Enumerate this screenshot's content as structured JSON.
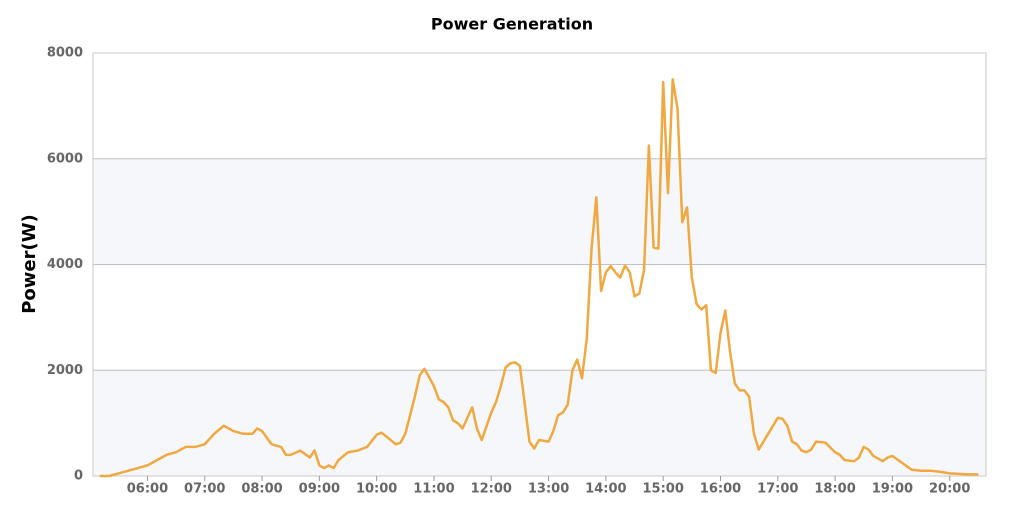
{
  "chart_data": {
    "type": "line",
    "title": "Power Generation",
    "y_label": "Power(W)",
    "x": [
      "05:10",
      "05:20",
      "05:30",
      "05:40",
      "05:50",
      "06:00",
      "06:10",
      "06:20",
      "06:30",
      "06:40",
      "06:50",
      "07:00",
      "07:10",
      "07:20",
      "07:30",
      "07:40",
      "07:50",
      "07:55",
      "08:00",
      "08:10",
      "08:20",
      "08:25",
      "08:30",
      "08:40",
      "08:50",
      "08:55",
      "09:00",
      "09:05",
      "09:10",
      "09:15",
      "09:20",
      "09:30",
      "09:40",
      "09:50",
      "10:00",
      "10:05",
      "10:10",
      "10:20",
      "10:25",
      "10:30",
      "10:40",
      "10:45",
      "10:50",
      "11:00",
      "11:05",
      "11:10",
      "11:15",
      "11:20",
      "11:25",
      "11:30",
      "11:35",
      "11:40",
      "11:45",
      "11:50",
      "12:00",
      "12:05",
      "12:10",
      "12:15",
      "12:20",
      "12:25",
      "12:30",
      "12:40",
      "12:45",
      "12:50",
      "13:00",
      "13:05",
      "13:10",
      "13:15",
      "13:20",
      "13:25",
      "13:30",
      "13:35",
      "13:40",
      "13:45",
      "13:50",
      "13:55",
      "14:00",
      "14:05",
      "14:10",
      "14:15",
      "14:20",
      "14:25",
      "14:30",
      "14:35",
      "14:40",
      "14:45",
      "14:50",
      "14:55",
      "15:00",
      "15:05",
      "15:10",
      "15:15",
      "15:20",
      "15:25",
      "15:30",
      "15:35",
      "15:40",
      "15:45",
      "15:50",
      "15:55",
      "16:00",
      "16:05",
      "16:10",
      "16:15",
      "16:20",
      "16:25",
      "16:30",
      "16:35",
      "16:40",
      "16:50",
      "17:00",
      "17:05",
      "17:10",
      "17:15",
      "17:20",
      "17:25",
      "17:30",
      "17:35",
      "17:40",
      "17:50",
      "18:00",
      "18:05",
      "18:10",
      "18:20",
      "18:25",
      "18:30",
      "18:35",
      "18:40",
      "18:50",
      "18:55",
      "19:00",
      "19:10",
      "19:20",
      "19:30",
      "19:40",
      "19:50",
      "20:00",
      "20:10",
      "20:20",
      "20:30"
    ],
    "series": [
      {
        "name": "Power",
        "color": "#f0a840",
        "values": [
          0,
          0,
          50,
          100,
          150,
          200,
          300,
          400,
          450,
          550,
          550,
          600,
          800,
          950,
          850,
          800,
          800,
          900,
          850,
          600,
          550,
          400,
          400,
          480,
          350,
          480,
          200,
          150,
          200,
          150,
          300,
          450,
          480,
          550,
          780,
          820,
          750,
          600,
          630,
          800,
          1500,
          1900,
          2030,
          1700,
          1450,
          1400,
          1300,
          1050,
          1000,
          900,
          1100,
          1300,
          900,
          680,
          1200,
          1400,
          1700,
          2050,
          2130,
          2150,
          2080,
          650,
          520,
          680,
          650,
          850,
          1150,
          1200,
          1350,
          2000,
          2200,
          1850,
          2600,
          4300,
          5270,
          3500,
          3850,
          3970,
          3850,
          3750,
          3980,
          3850,
          3400,
          3450,
          3900,
          6250,
          4320,
          4300,
          7450,
          5350,
          7500,
          6950,
          4800,
          5080,
          3750,
          3250,
          3150,
          3230,
          2000,
          1950,
          2700,
          3130,
          2350,
          1750,
          1620,
          1620,
          1500,
          800,
          500,
          800,
          1100,
          1080,
          950,
          650,
          600,
          480,
          450,
          500,
          650,
          630,
          450,
          400,
          300,
          280,
          350,
          550,
          500,
          380,
          280,
          350,
          380,
          250,
          120,
          100,
          100,
          80,
          50,
          40,
          30,
          30
        ]
      }
    ],
    "xlim": [
      "05:03",
      "20:38"
    ],
    "xticks": [
      "06:00",
      "07:00",
      "08:00",
      "09:00",
      "10:00",
      "11:00",
      "12:00",
      "13:00",
      "14:00",
      "15:00",
      "16:00",
      "17:00",
      "18:00",
      "19:00",
      "20:00"
    ],
    "ylim": [
      0,
      8000
    ],
    "yticks": [
      0,
      2000,
      4000,
      6000,
      8000
    ],
    "grid": true,
    "banded": true
  }
}
